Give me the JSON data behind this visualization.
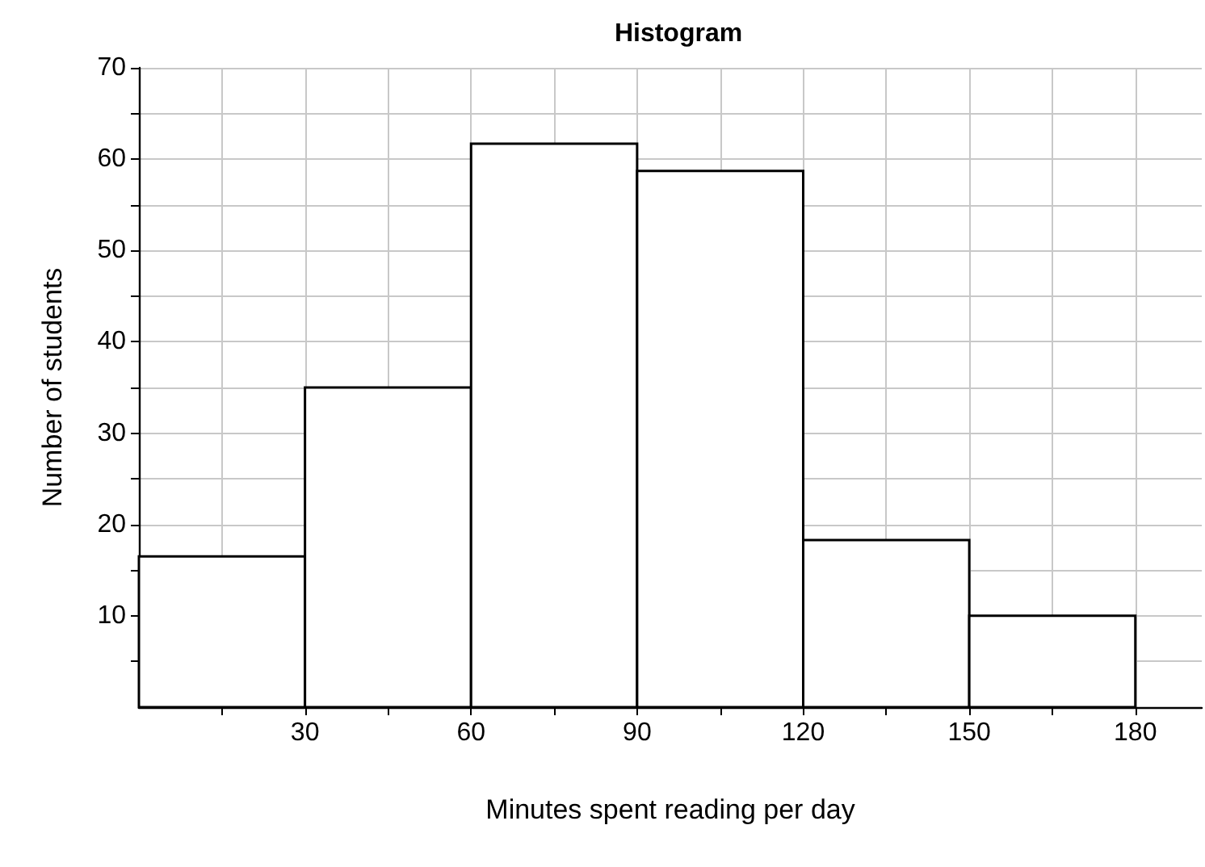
{
  "chart_data": {
    "type": "histogram",
    "title": "Histogram",
    "xlabel": "Minutes spent reading per day",
    "ylabel": "Number of students",
    "bins": [
      0,
      30,
      60,
      90,
      120,
      150,
      180
    ],
    "values": [
      16.5,
      35,
      61.7,
      58.7,
      18.3,
      10
    ],
    "color": "#ffffff",
    "xlim": [
      0,
      192
    ],
    "xticks": [
      {
        "value": 15,
        "label": null
      },
      30,
      {
        "value": 45,
        "label": null
      },
      60,
      {
        "value": 75,
        "label": null
      },
      90,
      {
        "value": 105,
        "label": null
      },
      120,
      {
        "value": 135,
        "label": null
      },
      150,
      {
        "value": 165,
        "label": null
      },
      180
    ],
    "ylim": [
      0,
      70
    ],
    "yticks": [
      {
        "value": 5,
        "label": null
      },
      10,
      {
        "value": 15,
        "label": null
      },
      20,
      {
        "value": 25,
        "label": null
      },
      30,
      {
        "value": 35,
        "label": null
      },
      40,
      {
        "value": 45,
        "label": null
      },
      50,
      {
        "value": 55,
        "label": null
      },
      60,
      {
        "value": 65,
        "label": null
      },
      70
    ],
    "grid": true
  }
}
